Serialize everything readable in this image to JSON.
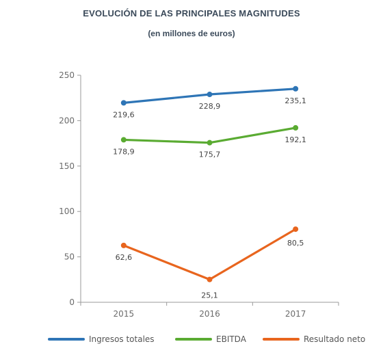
{
  "title": "EVOLUCIÓN DE LAS PRINCIPALES MAGNITUDES",
  "subtitle": "(en millones de euros)",
  "chart_data": {
    "type": "line",
    "categories": [
      "2015",
      "2016",
      "2017"
    ],
    "ylim": [
      0,
      250
    ],
    "yticks": [
      0,
      50,
      100,
      150,
      200,
      250
    ],
    "grid": false,
    "legend": "bottom",
    "series": [
      {
        "name": "Ingresos totales",
        "values": [
          219.6,
          228.9,
          235.1
        ],
        "labels": [
          "219,6",
          "228,9",
          "235,1"
        ],
        "color": "#2e75b6"
      },
      {
        "name": "EBITDA",
        "values": [
          178.9,
          175.7,
          192.1
        ],
        "labels": [
          "178,9",
          "175,7",
          "192,1"
        ],
        "color": "#5aab32"
      },
      {
        "name": "Resultado neto",
        "values": [
          62.6,
          25.1,
          80.5
        ],
        "labels": [
          "62,6",
          "25,1",
          "80,5"
        ],
        "color": "#e8651e"
      }
    ]
  }
}
